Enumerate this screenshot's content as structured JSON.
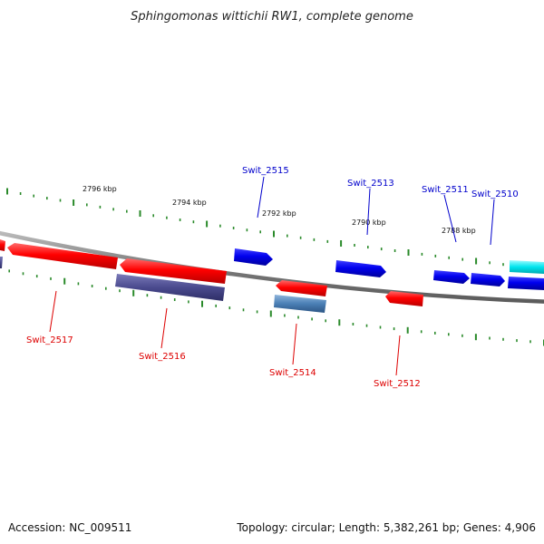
{
  "title": "Sphingomonas wittichii RW1, complete genome",
  "footer": {
    "accession": "Accession: NC_009511",
    "summary": "Topology: circular; Length: 5,382,261 bp; Genes: 4,906"
  },
  "colors": {
    "forward_label": "#0000cc",
    "reverse_label": "#dd0000",
    "backbone": "#8a8a8a",
    "tick": "#2a8a2a",
    "gene_red": "#ff0000",
    "gene_blue": "#0000ee",
    "gene_purple": "#4a4a8e",
    "gene_steel": "#4a7fb5",
    "gene_cyan": "#00e5ee"
  },
  "kbp_labels": [
    "2796 kbp",
    "2794 kbp",
    "2792 kbp",
    "2790 kbp",
    "2788 kbp"
  ],
  "genes": [
    {
      "name": "Swit_2510",
      "strand": "forward",
      "color": "gene_blue"
    },
    {
      "name": "Swit_2511",
      "strand": "forward",
      "color": "gene_blue"
    },
    {
      "name": "Swit_2512",
      "strand": "reverse",
      "color": "gene_red"
    },
    {
      "name": "Swit_2513",
      "strand": "forward",
      "color": "gene_blue"
    },
    {
      "name": "Swit_2514",
      "strand": "reverse",
      "color": "gene_red"
    },
    {
      "name": "Swit_2515",
      "strand": "forward",
      "color": "gene_blue"
    },
    {
      "name": "Swit_2516",
      "strand": "reverse",
      "color": "gene_red"
    },
    {
      "name": "Swit_2517",
      "strand": "reverse",
      "color": "gene_red"
    }
  ]
}
